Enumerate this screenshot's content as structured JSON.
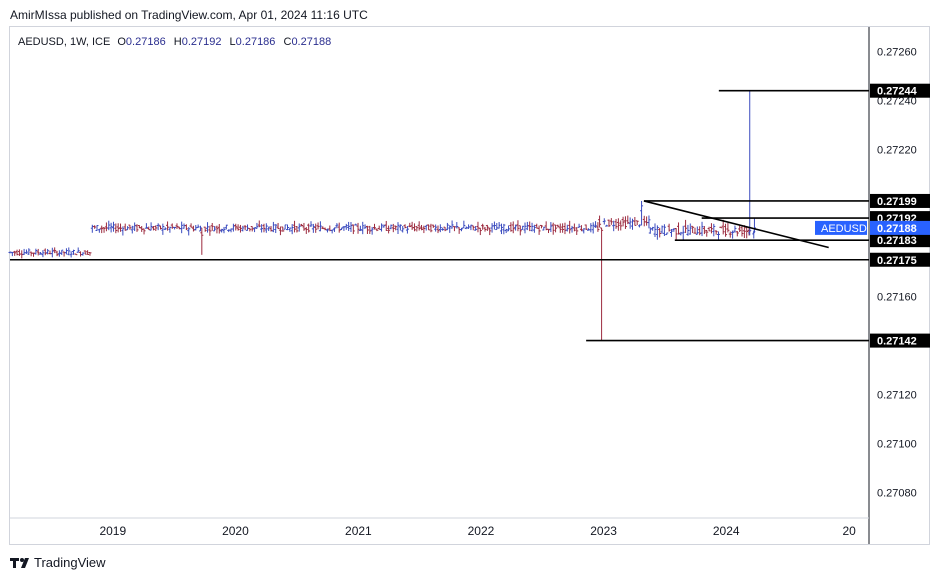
{
  "header": {
    "published_by": "AmirMIssa published on TradingView.com, Apr 01, 2024 11:16 UTC"
  },
  "legend": {
    "symbol": "AEDUSD, 1W, ICE",
    "open_label": "O",
    "open": "0.27186",
    "high_label": "H",
    "high": "0.27192",
    "low_label": "L",
    "low": "0.27186",
    "close_label": "C",
    "close": "0.27188"
  },
  "footer": {
    "brand": "TradingView",
    "logo": "tradingview-logo-icon"
  },
  "colors": {
    "up": "#3a4bbf",
    "down": "#9c2a3e",
    "line": "#000000",
    "price_tag": "#2962ff",
    "label_bg": "#000000"
  },
  "chart_data": {
    "type": "ohlc",
    "symbol": "AEDUSD",
    "timeframe": "1W",
    "ylim": [
      0.2707,
      0.2727
    ],
    "xlim": [
      "2018-03-01",
      "2025-03-01"
    ],
    "y_ticks": [
      "0.27260",
      "0.27240",
      "0.27220",
      "0.27160",
      "0.27120",
      "0.27100",
      "0.27080"
    ],
    "x_ticks": [
      {
        "label": "2019",
        "date": "2019-01-01"
      },
      {
        "label": "2020",
        "date": "2020-01-01"
      },
      {
        "label": "2021",
        "date": "2021-01-01"
      },
      {
        "label": "2022",
        "date": "2022-01-01"
      },
      {
        "label": "2023",
        "date": "2023-01-01"
      },
      {
        "label": "2024",
        "date": "2024-01-01"
      },
      {
        "label": "20",
        "date": "2025-01-01"
      }
    ],
    "price_label": {
      "symbol": "AEDUSD",
      "value": "0.27188"
    },
    "levels": [
      {
        "value": 0.27244,
        "label": "0.27244",
        "from": "2023-12-10"
      },
      {
        "value": 0.27199,
        "label": "0.27199",
        "from": "2023-05-01"
      },
      {
        "value": 0.27192,
        "label": "0.27192",
        "from": "2023-10-20"
      },
      {
        "value": 0.27183,
        "label": "0.27183",
        "from": "2023-08-01"
      },
      {
        "value": 0.27175,
        "label": "0.27175",
        "from": "2018-03-01"
      },
      {
        "value": 0.27142,
        "label": "0.27142",
        "from": "2022-11-10"
      }
    ],
    "trendline": {
      "start": [
        "2023-05-01",
        0.27199
      ],
      "end": [
        "2024-11-01",
        0.2718
      ],
      "label": ""
    },
    "segments": [
      {
        "from": "2018-03-01",
        "to": "2018-11-01",
        "center": 0.27178,
        "amplitude": 2e-05
      },
      {
        "from": "2018-11-01",
        "to": "2022-12-20",
        "center": 0.27188,
        "amplitude": 2.5e-05
      },
      {
        "from": "2022-12-20",
        "to": "2023-05-20",
        "center": 0.2719,
        "amplitude": 3e-05
      },
      {
        "from": "2023-05-20",
        "to": "2024-03-31",
        "center": 0.27187,
        "amplitude": 3.5e-05
      }
    ],
    "notable_bars": [
      {
        "date": "2019-09-23",
        "open": 0.27186,
        "high": 0.27188,
        "low": 0.27177,
        "close": 0.27185
      },
      {
        "date": "2022-12-26",
        "open": 0.27188,
        "high": 0.27188,
        "low": 0.27142,
        "close": 0.27187
      },
      {
        "date": "2023-04-24",
        "open": 0.27195,
        "high": 0.27199,
        "low": 0.27189,
        "close": 0.27197
      },
      {
        "date": "2024-03-11",
        "open": 0.27186,
        "high": 0.27244,
        "low": 0.27185,
        "close": 0.27187
      },
      {
        "date": "2024-03-25",
        "open": 0.27186,
        "high": 0.27192,
        "low": 0.27186,
        "close": 0.27188
      }
    ]
  }
}
